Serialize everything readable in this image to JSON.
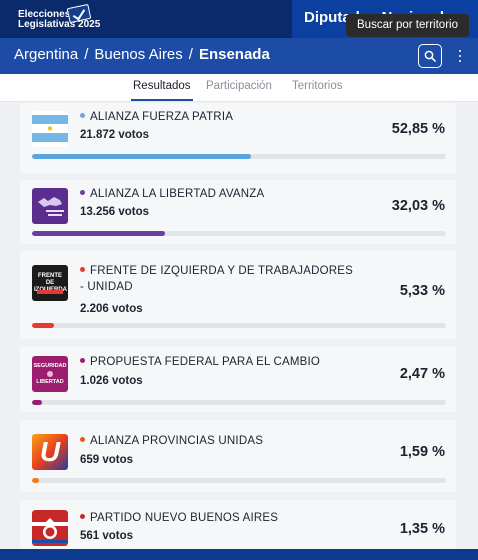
{
  "header": {
    "logo_line1": "Elecciones",
    "logo_line2": "Legislativas 2025",
    "title": "Diputados Nacionales",
    "tooltip": "Buscar por territorio"
  },
  "breadcrumb": {
    "level1": "Argentina",
    "level2": "Buenos Aires",
    "current": "Ensenada",
    "separator": "/"
  },
  "tabs": [
    {
      "label": "Resultados",
      "active": true
    },
    {
      "label": "Participación",
      "active": false
    },
    {
      "label": "Territorios",
      "active": false
    }
  ],
  "results": [
    {
      "name": "ALIANZA FUERZA PATRIA",
      "votes": "21.872 votos",
      "percent": "52,85 %",
      "share": 52.85,
      "color": "#5ba3dc",
      "dot": "#6aa9db",
      "logo": "argentina-flag-icon"
    },
    {
      "name": "ALIANZA LA LIBERTAD AVANZA",
      "votes": "13.256 votos",
      "percent": "32,03 %",
      "share": 32.03,
      "color": "#6b3fa0",
      "dot": "#6b3fa0",
      "logo": "libertad-avanza-logo"
    },
    {
      "name": "FRENTE DE IZQUIERDA Y DE TRABAJADORES - UNIDAD",
      "votes": "2.206 votos",
      "percent": "5,33 %",
      "share": 5.33,
      "color": "#e53935",
      "dot": "#e53935",
      "logo": "frente-izquierda-logo",
      "logo_text": "FRENTE DE IZQUIERDA"
    },
    {
      "name": "PROPUESTA FEDERAL PARA EL CAMBIO",
      "votes": "1.026 votos",
      "percent": "2,47 %",
      "share": 2.47,
      "color": "#9b1f6e",
      "dot": "#9b1f6e",
      "logo": "seguridad-libertad-logo",
      "logo_text_1": "SEGURIDAD",
      "logo_text_2": "LIBERTAD"
    },
    {
      "name": "ALIANZA PROVINCIAS UNIDAS",
      "votes": "659 votos",
      "percent": "1,59 %",
      "share": 1.59,
      "color": "#f07b1f",
      "dot": "#e25a1c",
      "logo": "provincias-unidas-logo",
      "logo_letter": "U"
    },
    {
      "name": "PARTIDO NUEVO BUENOS AIRES",
      "votes": "561 votos",
      "percent": "1,35 %",
      "share": 1.35,
      "color": "#c62828",
      "dot": "#c62828",
      "logo": "nuevo-buenos-aires-logo"
    }
  ]
}
